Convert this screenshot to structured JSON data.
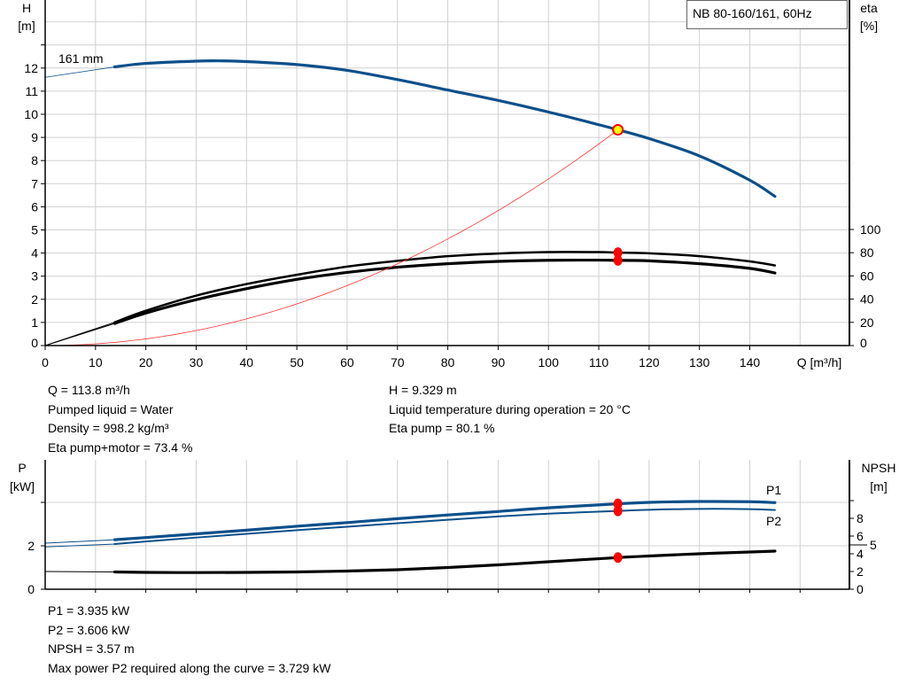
{
  "colors": {
    "head": "#0b4f8a",
    "eta": "#000000",
    "system": "#ff3333",
    "duty_point": "#ff0000",
    "operating_point_fill": "#ffff00",
    "grid": "#d0d0d0"
  },
  "chart_data": [
    {
      "type": "line",
      "title": "NB 80-160/161, 60Hz",
      "xlabel": "Q [m³/h]",
      "ylabel": [
        "H",
        "[m]"
      ],
      "y2label": [
        "eta",
        "[%]"
      ],
      "xlim": [
        0,
        160
      ],
      "ylim": [
        0,
        15
      ],
      "y2lim": [
        0,
        100
      ],
      "xticks": [
        0,
        10,
        20,
        30,
        40,
        50,
        60,
        70,
        80,
        90,
        100,
        110,
        120,
        130,
        140
      ],
      "yticks": [
        0,
        1,
        2,
        3,
        4,
        5,
        6,
        7,
        8,
        9,
        10,
        11,
        12
      ],
      "y2ticks": [
        0,
        20,
        40,
        60,
        80,
        100
      ],
      "grid": true,
      "curve_label": "161 mm",
      "series": [
        {
          "id": "head",
          "axis": "left",
          "thin": [
            [
              0,
              11.6
            ],
            [
              13.8,
              12.05
            ]
          ],
          "points": [
            [
              13.8,
              12.05
            ],
            [
              20,
              12.2
            ],
            [
              30,
              12.3
            ],
            [
              35,
              12.31
            ],
            [
              40,
              12.28
            ],
            [
              50,
              12.15
            ],
            [
              60,
              11.9
            ],
            [
              70,
              11.5
            ],
            [
              80,
              11.05
            ],
            [
              90,
              10.6
            ],
            [
              100,
              10.1
            ],
            [
              110,
              9.55
            ],
            [
              113.8,
              9.329
            ],
            [
              120,
              8.95
            ],
            [
              130,
              8.2
            ],
            [
              140,
              7.15
            ],
            [
              145,
              6.45
            ]
          ]
        },
        {
          "id": "eta-pump",
          "axis": "right",
          "thin": [
            [
              0,
              0
            ],
            [
              13.8,
              20
            ]
          ],
          "points": [
            [
              13.8,
              20
            ],
            [
              20,
              30
            ],
            [
              30,
              43
            ],
            [
              40,
              53
            ],
            [
              50,
              61
            ],
            [
              60,
              68
            ],
            [
              70,
              73
            ],
            [
              80,
              77
            ],
            [
              90,
              79.3
            ],
            [
              100,
              80.5
            ],
            [
              110,
              80.5
            ],
            [
              113.8,
              80.1
            ],
            [
              120,
              79.5
            ],
            [
              130,
              77
            ],
            [
              140,
              72.5
            ],
            [
              145,
              69
            ]
          ]
        },
        {
          "id": "eta-pump-motor",
          "axis": "right",
          "thin": [
            [
              0,
              0
            ],
            [
              13.8,
              19
            ]
          ],
          "points": [
            [
              13.8,
              19
            ],
            [
              20,
              28
            ],
            [
              30,
              39.5
            ],
            [
              40,
              49
            ],
            [
              50,
              57
            ],
            [
              60,
              63
            ],
            [
              70,
              67.5
            ],
            [
              80,
              70.5
            ],
            [
              90,
              72.5
            ],
            [
              100,
              73.5
            ],
            [
              110,
              73.6
            ],
            [
              113.8,
              73.4
            ],
            [
              120,
              73
            ],
            [
              130,
              70.5
            ],
            [
              140,
              66.5
            ],
            [
              145,
              62.5
            ]
          ]
        },
        {
          "id": "system-curve",
          "axis": "left",
          "quadratic_through": [
            113.8,
            9.329
          ]
        }
      ],
      "markers": [
        {
          "kind": "operating-point",
          "x": 113.8,
          "y": 9.329,
          "axis": "left"
        },
        {
          "kind": "duty",
          "x": 113.8,
          "y": 80.1,
          "axis": "right"
        },
        {
          "kind": "duty",
          "x": 113.8,
          "y": 73.4,
          "axis": "right"
        }
      ]
    },
    {
      "type": "line",
      "xlim": [
        0,
        160
      ],
      "ylabel": [
        "P",
        "[kW]"
      ],
      "y2label": [
        "NPSH",
        "[m]"
      ],
      "ylim": [
        0,
        6
      ],
      "yticks": [
        0,
        2
      ],
      "ygrid": [
        2,
        4
      ],
      "y2ticks": [
        0,
        2,
        4,
        5,
        6,
        8
      ],
      "grid": true,
      "series": [
        {
          "id": "P1",
          "name": "P1",
          "axis": "left",
          "thin": [
            [
              0,
              2.12
            ],
            [
              13.8,
              2.28
            ]
          ],
          "points": [
            [
              13.8,
              2.28
            ],
            [
              20,
              2.38
            ],
            [
              30,
              2.55
            ],
            [
              40,
              2.72
            ],
            [
              50,
              2.9
            ],
            [
              60,
              3.07
            ],
            [
              70,
              3.25
            ],
            [
              80,
              3.42
            ],
            [
              90,
              3.58
            ],
            [
              100,
              3.75
            ],
            [
              113.8,
              3.935
            ],
            [
              120,
              4.0
            ],
            [
              130,
              4.04
            ],
            [
              140,
              4.03
            ],
            [
              145,
              3.99
            ]
          ]
        },
        {
          "id": "P2",
          "name": "P2",
          "axis": "left",
          "thin": [
            [
              0,
              1.95
            ],
            [
              13.8,
              2.08
            ]
          ],
          "points": [
            [
              13.8,
              2.08
            ],
            [
              20,
              2.2
            ],
            [
              30,
              2.38
            ],
            [
              40,
              2.55
            ],
            [
              50,
              2.72
            ],
            [
              60,
              2.88
            ],
            [
              70,
              3.04
            ],
            [
              80,
              3.2
            ],
            [
              90,
              3.35
            ],
            [
              100,
              3.48
            ],
            [
              113.8,
              3.606
            ],
            [
              120,
              3.66
            ],
            [
              130,
              3.7
            ],
            [
              140,
              3.69
            ],
            [
              145,
              3.65
            ]
          ]
        },
        {
          "id": "NPSH",
          "axis": "right",
          "thin": [
            [
              0,
              2.0
            ],
            [
              13.8,
              1.95
            ]
          ],
          "points": [
            [
              13.8,
              1.95
            ],
            [
              20,
              1.9
            ],
            [
              30,
              1.88
            ],
            [
              40,
              1.9
            ],
            [
              50,
              1.95
            ],
            [
              60,
              2.05
            ],
            [
              70,
              2.2
            ],
            [
              80,
              2.45
            ],
            [
              90,
              2.75
            ],
            [
              100,
              3.1
            ],
            [
              113.8,
              3.57
            ],
            [
              120,
              3.75
            ],
            [
              130,
              4.0
            ],
            [
              140,
              4.2
            ],
            [
              145,
              4.3
            ]
          ]
        }
      ],
      "markers": [
        {
          "kind": "duty",
          "x": 113.8,
          "y": 3.935,
          "axis": "left"
        },
        {
          "kind": "duty",
          "x": 113.8,
          "y": 3.606,
          "axis": "left"
        },
        {
          "kind": "duty",
          "x": 113.8,
          "y": 3.57,
          "axis": "right"
        }
      ]
    }
  ],
  "results_top": {
    "left": [
      "Q = 113.8 m³/h",
      "Pumped liquid = Water",
      "Density = 998.2 kg/m³",
      "Eta pump+motor = 73.4 %"
    ],
    "right": [
      "H = 9.329 m",
      "Liquid temperature during operation = 20 °C",
      "Eta pump = 80.1 %"
    ]
  },
  "results_bottom": [
    "P1 = 3.935 kW",
    "P2 = 3.606 kW",
    "NPSH = 3.57 m",
    "Max power P2 required along the curve = 3.729 kW"
  ]
}
